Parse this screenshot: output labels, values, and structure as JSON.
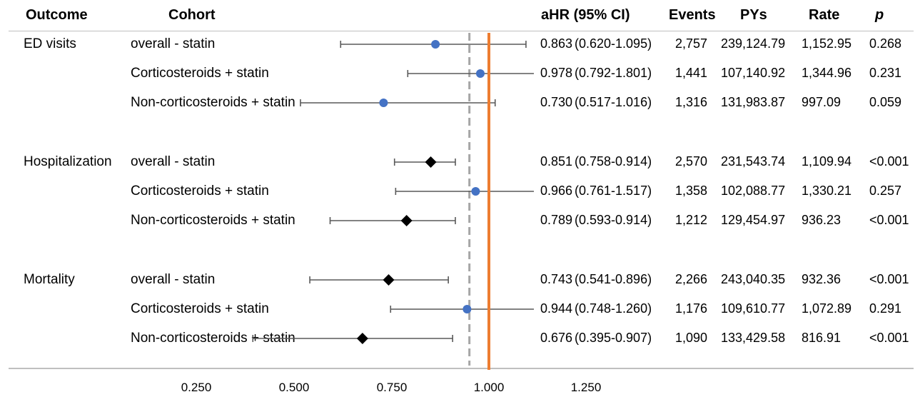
{
  "headers": {
    "outcome": "Outcome",
    "cohort": "Cohort",
    "ahr": "aHR (95% CI)",
    "events": "Events",
    "pys": "PYs",
    "rate": "Rate",
    "p": "p"
  },
  "groups": [
    {
      "label": "ED visits"
    },
    {
      "label": "Hospitalization"
    },
    {
      "label": "Mortality"
    }
  ],
  "rows": [
    {
      "cohort": "overall - statin",
      "ahr": "0.863",
      "ci": "(0.620-1.095)",
      "events": "2,757",
      "pys": "239,124.79",
      "rate": "1,152.95",
      "p": "0.268"
    },
    {
      "cohort": "Corticosteroids + statin",
      "ahr": "0.978",
      "ci": "(0.792-1.801)",
      "events": "1,441",
      "pys": "107,140.92",
      "rate": "1,344.96",
      "p": "0.231"
    },
    {
      "cohort": "Non-corticosteroids + statin",
      "ahr": "0.730",
      "ci": "(0.517-1.016)",
      "events": "1,316",
      "pys": "131,983.87",
      "rate": "997.09",
      "p": "0.059"
    },
    {
      "cohort": "overall - statin",
      "ahr": "0.851",
      "ci": "(0.758-0.914)",
      "events": "2,570",
      "pys": "231,543.74",
      "rate": "1,109.94",
      "p": "<0.001"
    },
    {
      "cohort": "Corticosteroids + statin",
      "ahr": "0.966",
      "ci": "(0.761-1.517)",
      "events": "1,358",
      "pys": "102,088.77",
      "rate": "1,330.21",
      "p": "0.257"
    },
    {
      "cohort": "Non-corticosteroids + statin",
      "ahr": "0.789",
      "ci": "(0.593-0.914)",
      "events": "1,212",
      "pys": "129,454.97",
      "rate": "936.23",
      "p": "<0.001"
    },
    {
      "cohort": "overall - statin",
      "ahr": "0.743",
      "ci": "(0.541-0.896)",
      "events": "2,266",
      "pys": "243,040.35",
      "rate": "932.36",
      "p": "<0.001"
    },
    {
      "cohort": "Corticosteroids + statin",
      "ahr": "0.944",
      "ci": "(0.748-1.260)",
      "events": "1,176",
      "pys": "109,610.77",
      "rate": "1,072.89",
      "p": "0.291"
    },
    {
      "cohort": "Non-corticosteroids + statin",
      "ahr": "0.676",
      "ci": "(0.395-0.907)",
      "events": "1,090",
      "pys": "133,429.58",
      "rate": "816.91",
      "p": "<0.001"
    }
  ],
  "axis_ticks": [
    "0.250",
    "0.500",
    "0.750",
    "1.000",
    "1.250"
  ],
  "colors": {
    "circle_marker": "#4472c4",
    "diamond_marker": "#000000",
    "whisker": "#595959",
    "reference_line": "#ed7d31",
    "dashed_line": "#a6a6a6"
  },
  "chart_data": {
    "type": "scatter",
    "subtype": "forest-plot",
    "xlabel": "",
    "ylabel": "",
    "xlim": [
      0.18,
      1.3
    ],
    "x_ticks": [
      0.25,
      0.5,
      0.75,
      1.0,
      1.25
    ],
    "reference_line": 1.0,
    "dashed_line": 0.95,
    "grid": false,
    "series": [
      {
        "marker": "circle",
        "color": "#4472c4",
        "points": [
          {
            "outcome": "ED visits",
            "cohort": "overall - statin",
            "x": 0.863,
            "low": 0.62,
            "high": 1.095
          },
          {
            "outcome": "ED visits",
            "cohort": "Corticosteroids + statin",
            "x": 0.978,
            "low": 0.792,
            "high": 1.801
          },
          {
            "outcome": "ED visits",
            "cohort": "Non-corticosteroids + statin",
            "x": 0.73,
            "low": 0.517,
            "high": 1.016
          },
          {
            "outcome": "Hospitalization",
            "cohort": "Corticosteroids + statin",
            "x": 0.966,
            "low": 0.761,
            "high": 1.517
          },
          {
            "outcome": "Mortality",
            "cohort": "Corticosteroids + statin",
            "x": 0.944,
            "low": 0.748,
            "high": 1.26
          }
        ]
      },
      {
        "marker": "diamond",
        "color": "#000000",
        "points": [
          {
            "outcome": "Hospitalization",
            "cohort": "overall - statin",
            "x": 0.851,
            "low": 0.758,
            "high": 0.914
          },
          {
            "outcome": "Hospitalization",
            "cohort": "Non-corticosteroids + statin",
            "x": 0.789,
            "low": 0.593,
            "high": 0.914
          },
          {
            "outcome": "Mortality",
            "cohort": "overall - statin",
            "x": 0.743,
            "low": 0.541,
            "high": 0.896
          },
          {
            "outcome": "Mortality",
            "cohort": "Non-corticosteroids + statin",
            "x": 0.676,
            "low": 0.395,
            "high": 0.907
          }
        ]
      }
    ]
  }
}
